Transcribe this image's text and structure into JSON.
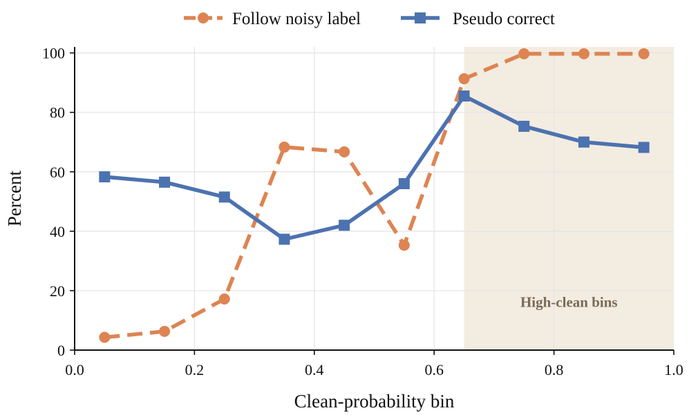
{
  "chart_data": {
    "type": "line",
    "title": "",
    "xlabel": "Clean-probability bin",
    "ylabel": "Percent",
    "xlim": [
      0.0,
      1.0
    ],
    "ylim": [
      0,
      102
    ],
    "xticks": [
      0.0,
      0.2,
      0.4,
      0.6,
      0.8,
      1.0
    ],
    "xtick_labels": [
      "0.0",
      "0.2",
      "0.4",
      "0.6",
      "0.8",
      "1.0"
    ],
    "yticks": [
      0,
      20,
      40,
      60,
      80,
      100
    ],
    "ytick_labels": [
      "0",
      "20",
      "40",
      "60",
      "80",
      "100"
    ],
    "grid": true,
    "legend_position": "top-center",
    "x": [
      0.05,
      0.15,
      0.25,
      0.35,
      0.45,
      0.55,
      0.65,
      0.75,
      0.85,
      0.95
    ],
    "series": [
      {
        "name": "Follow noisy label",
        "values": [
          4.3,
          6.3,
          17.2,
          68.3,
          66.7,
          35.3,
          91.3,
          99.7,
          99.7,
          99.7
        ],
        "color": "#dd8452",
        "line_style": "dashed",
        "marker": "circle"
      },
      {
        "name": "Pseudo correct",
        "values": [
          58.3,
          56.5,
          51.5,
          37.3,
          42.0,
          56.0,
          85.5,
          75.3,
          70.0,
          68.2
        ],
        "color": "#4c72b0",
        "line_style": "solid",
        "marker": "square"
      }
    ],
    "shaded_region": {
      "x_range": [
        0.65,
        1.0
      ],
      "label": "High-clean bins",
      "fill_color": "#f3ece1",
      "label_color": "#7a6a56"
    }
  }
}
